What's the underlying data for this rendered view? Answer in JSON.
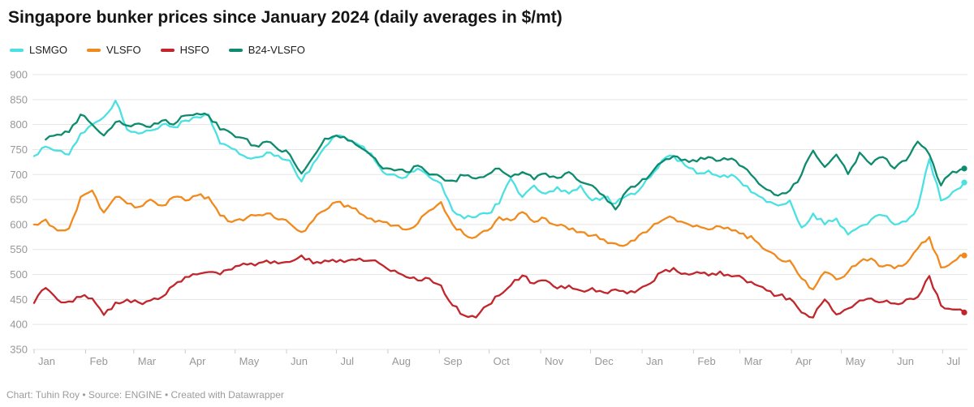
{
  "header": {
    "title": "Singapore bunker prices since January 2024 (daily averages in $/mt)"
  },
  "legend": {
    "items": [
      {
        "label": "LSMGO",
        "color": "#4be1e3"
      },
      {
        "label": "VLSFO",
        "color": "#f18a1d"
      },
      {
        "label": "HSFO",
        "color": "#c0262c"
      },
      {
        "label": "B24-VLSFO",
        "color": "#0e8b6d"
      }
    ]
  },
  "footer": {
    "text": "Chart: Tuhin Roy • Source: ENGINE • Created with Datawrapper"
  },
  "chart_data": {
    "type": "line",
    "title": "Singapore bunker prices since January 2024 (daily averages in $/mt)",
    "unit": "$/mt",
    "ylim": [
      350,
      900
    ],
    "y_ticks": [
      900,
      850,
      800,
      750,
      700,
      650,
      600,
      550,
      500,
      450,
      400,
      350
    ],
    "grid": "horizontal",
    "legend_position": "top-left",
    "x_tick_labels": [
      "Jan",
      "Feb",
      "Mar",
      "Apr",
      "May",
      "Jun",
      "Jul",
      "Aug",
      "Sep",
      "Oct",
      "Nov",
      "Dec",
      "Jan",
      "Feb",
      "Mar",
      "Apr",
      "May",
      "Jun",
      "Jul"
    ],
    "x_tick_week_positions": [
      0,
      4.43,
      8.57,
      13.0,
      17.29,
      21.71,
      26.0,
      30.43,
      34.86,
      39.14,
      43.57,
      47.86,
      52.29,
      56.71,
      60.71,
      65.14,
      69.43,
      73.86,
      78.14
    ],
    "x_start_label": "Jan 2024",
    "x_end_label": "mid-Jul 2025",
    "sample_interval_days": 7,
    "x_range_weeks": 80,
    "series": [
      {
        "name": "LSMGO",
        "color": "#4be1e3",
        "values": [
          737,
          756,
          748,
          740,
          782,
          800,
          815,
          848,
          790,
          782,
          788,
          800,
          795,
          808,
          815,
          820,
          762,
          752,
          738,
          734,
          744,
          738,
          728,
          686,
          722,
          755,
          778,
          770,
          758,
          742,
          705,
          700,
          695,
          712,
          695,
          682,
          628,
          612,
          615,
          622,
          642,
          692,
          655,
          678,
          662,
          675,
          662,
          678,
          648,
          655,
          642,
          658,
          668,
          695,
          728,
          737,
          718,
          702,
          708,
          695,
          700,
          678,
          662,
          645,
          638,
          648,
          594,
          622,
          600,
          612,
          580,
          596,
          610,
          618,
          600,
          606,
          635,
          731,
          648,
          665,
          684
        ]
      },
      {
        "name": "VLSFO",
        "color": "#f18a1d",
        "values": [
          600,
          610,
          588,
          592,
          655,
          668,
          624,
          655,
          642,
          635,
          650,
          638,
          655,
          648,
          658,
          655,
          618,
          605,
          608,
          618,
          622,
          610,
          602,
          585,
          608,
          628,
          645,
          638,
          622,
          612,
          605,
          598,
          590,
          602,
          628,
          645,
          600,
          580,
          575,
          588,
          615,
          608,
          625,
          605,
          612,
          598,
          590,
          585,
          578,
          570,
          562,
          560,
          578,
          592,
          608,
          613,
          603,
          598,
          590,
          596,
          588,
          582,
          568,
          548,
          532,
          528,
          492,
          470,
          505,
          490,
          505,
          525,
          532,
          516,
          512,
          522,
          552,
          575,
          514,
          525,
          538
        ]
      },
      {
        "name": "HSFO",
        "color": "#c0262c",
        "values": [
          443,
          473,
          450,
          446,
          455,
          452,
          419,
          444,
          450,
          444,
          448,
          455,
          478,
          495,
          500,
          505,
          500,
          510,
          522,
          518,
          528,
          522,
          525,
          538,
          522,
          528,
          525,
          528,
          532,
          528,
          518,
          508,
          495,
          488,
          492,
          478,
          438,
          418,
          414,
          438,
          458,
          478,
          498,
          482,
          488,
          472,
          478,
          468,
          473,
          464,
          470,
          462,
          470,
          482,
          505,
          513,
          502,
          505,
          498,
          506,
          496,
          492,
          480,
          468,
          458,
          452,
          424,
          414,
          450,
          420,
          432,
          448,
          452,
          445,
          442,
          450,
          455,
          497,
          438,
          430,
          424
        ]
      },
      {
        "name": "B24-VLSFO",
        "color": "#0e8b6d",
        "values": [
          null,
          770,
          780,
          785,
          820,
          800,
          778,
          805,
          798,
          802,
          795,
          808,
          800,
          818,
          822,
          818,
          790,
          782,
          773,
          758,
          766,
          750,
          740,
          702,
          735,
          772,
          778,
          768,
          755,
          738,
          712,
          708,
          705,
          718,
          700,
          695,
          688,
          698,
          692,
          700,
          712,
          695,
          705,
          690,
          702,
          693,
          705,
          685,
          678,
          658,
          630,
          668,
          682,
          700,
          725,
          737,
          730,
          726,
          735,
          728,
          732,
          715,
          692,
          670,
          658,
          668,
          700,
          748,
          715,
          740,
          701,
          744,
          720,
          735,
          712,
          728,
          766,
          740,
          678,
          706,
          712
        ]
      }
    ]
  }
}
